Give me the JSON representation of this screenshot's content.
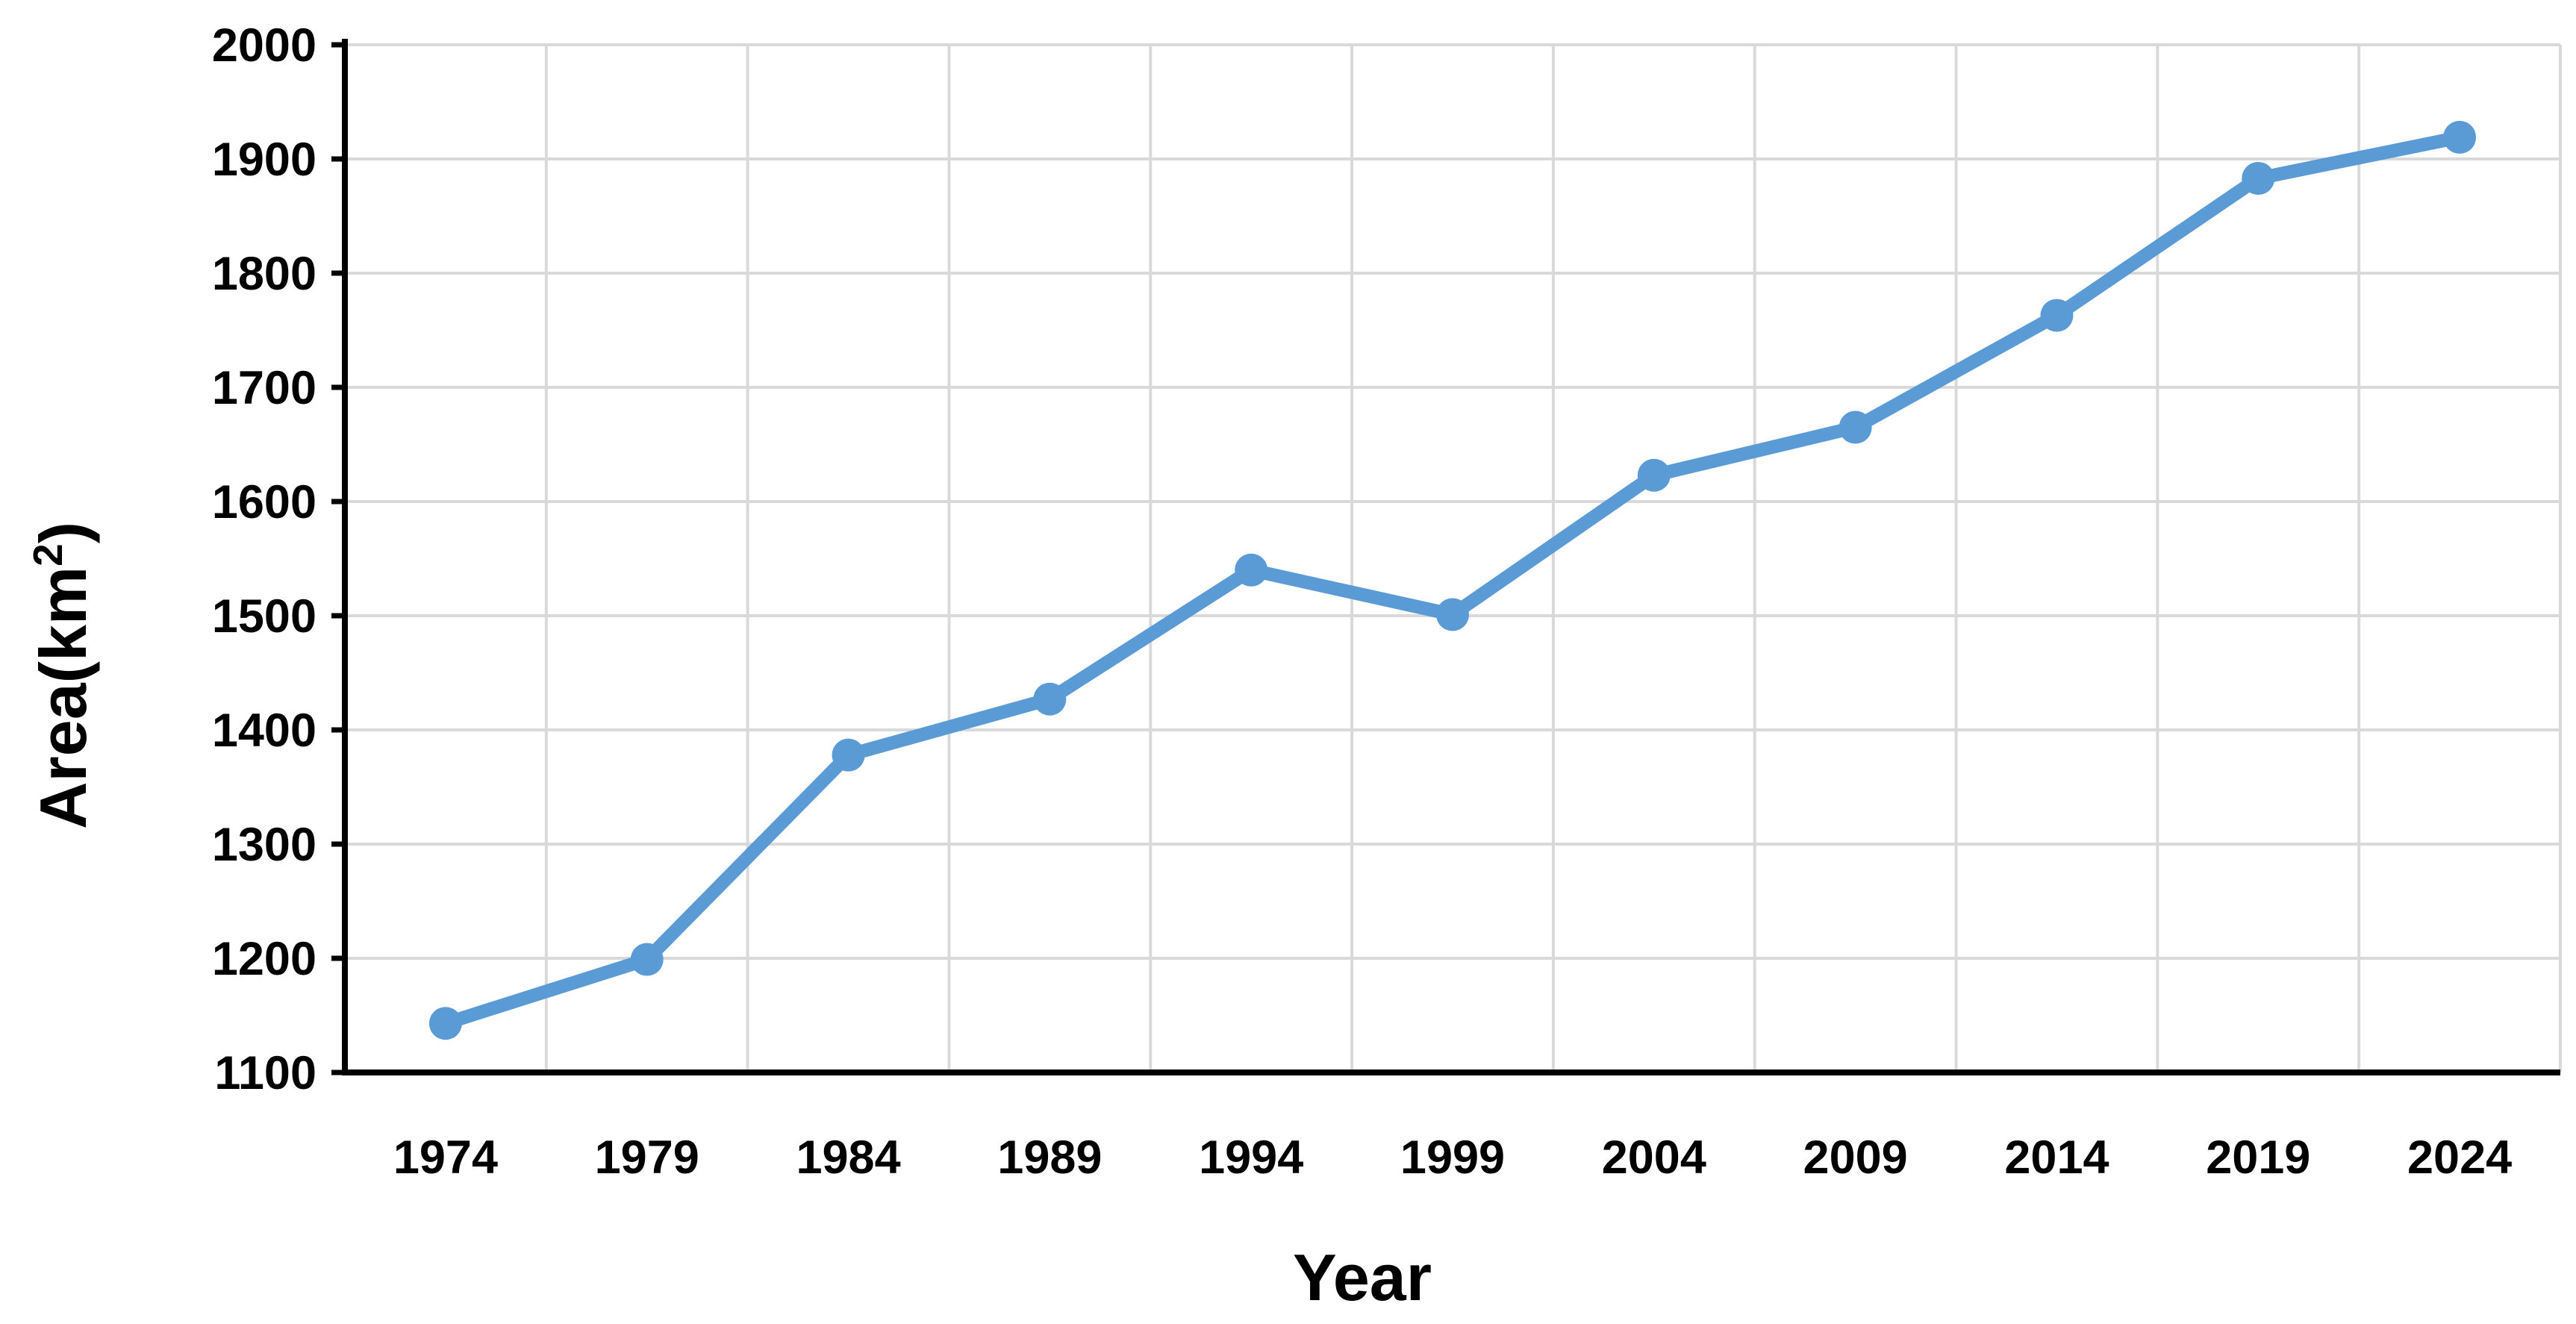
{
  "chart_data": {
    "type": "line",
    "xlabel": "Year",
    "ylabel": "Area(km",
    "ylabel_sup": "2",
    "ylabel_close": ")",
    "x": [
      "1974",
      "1979",
      "1984",
      "1989",
      "1994",
      "1999",
      "2004",
      "2009",
      "2014",
      "2019",
      "2024"
    ],
    "series": [
      {
        "values": [
          1143,
          1199,
          1378,
          1427,
          1540,
          1501,
          1623,
          1665,
          1763,
          1883,
          1919
        ]
      }
    ],
    "ylim": [
      1100,
      2000
    ],
    "yticks": [
      "2000",
      "1900",
      "1800",
      "1700",
      "1600",
      "1500",
      "1400",
      "1300",
      "1200",
      "1100"
    ],
    "grid": true,
    "line_color": "#5B9BD5"
  }
}
